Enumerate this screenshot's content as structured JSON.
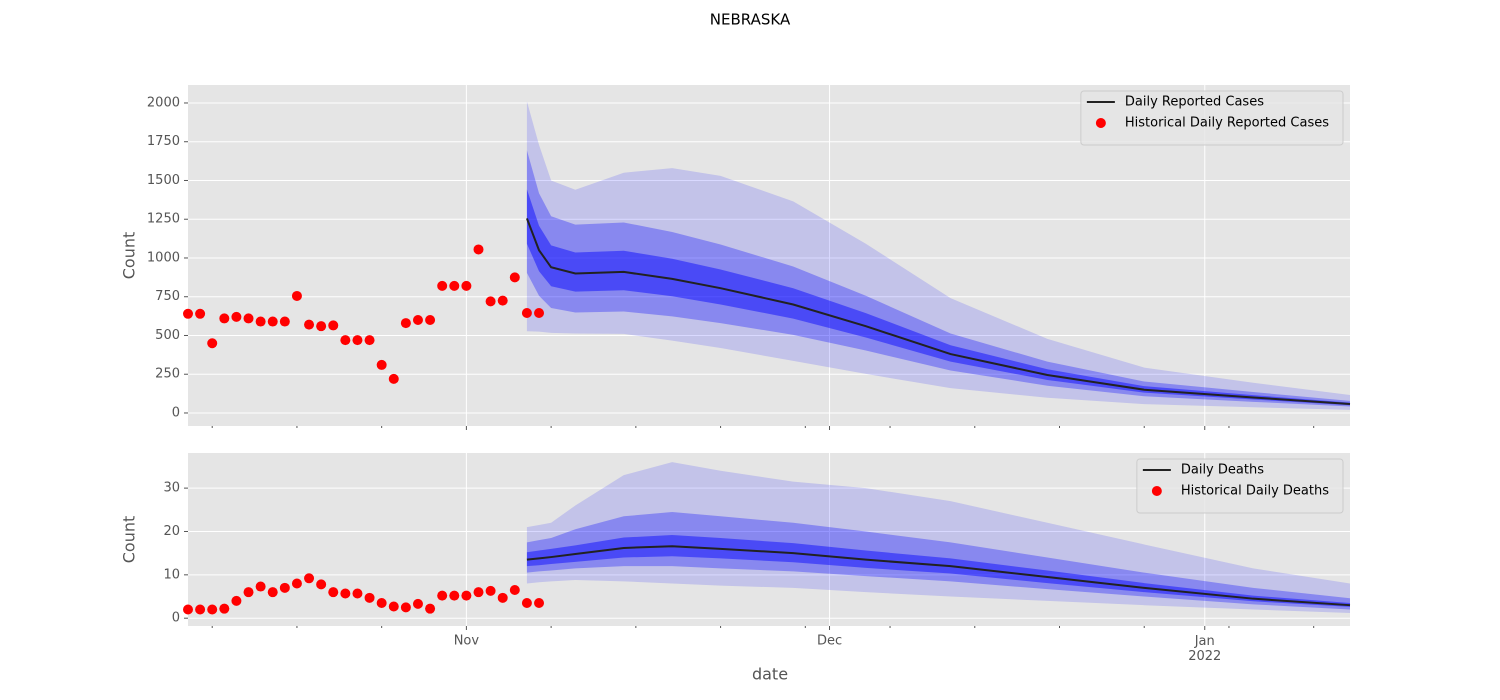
{
  "chart_data": [
    {
      "type": "line",
      "title": "NEBRASKA",
      "ylabel": "Count",
      "sharex": true,
      "grid": true,
      "legend": "upper right",
      "ylim": [
        -84,
        2116
      ],
      "yticks": [
        0,
        250,
        500,
        750,
        1000,
        1250,
        1500,
        1750,
        2000
      ],
      "x": [
        28,
        29,
        30,
        32,
        36,
        40,
        44,
        50,
        56,
        63,
        71,
        79,
        88,
        96
      ],
      "series": [
        {
          "name": "Daily Reported Cases",
          "type": "line",
          "color": "#222222",
          "values": [
            1255,
            1050,
            940,
            900,
            910,
            865,
            805,
            700,
            560,
            380,
            245,
            150,
            100,
            58
          ]
        },
        {
          "name": "Historical Daily Reported Cases",
          "type": "scatter",
          "color": "#ff0000",
          "x": [
            0,
            1,
            2,
            3,
            4,
            5,
            6,
            7,
            8,
            9,
            10,
            11,
            12,
            13,
            14,
            15,
            16,
            17,
            18,
            19,
            20,
            21,
            22,
            23,
            24,
            25,
            26,
            27,
            28,
            29
          ],
          "values": [
            640,
            640,
            450,
            610,
            620,
            610,
            590,
            590,
            590,
            755,
            570,
            560,
            565,
            470,
            470,
            470,
            310,
            220,
            580,
            600,
            600,
            820,
            820,
            820,
            1055,
            720,
            725,
            875,
            645,
            645
          ]
        }
      ],
      "bands": {
        "color": "#0000ff",
        "ranges": [
          {
            "opacity": 0.15,
            "upper": [
              2010,
              1730,
              1500,
              1440,
              1550,
              1580,
              1530,
              1365,
              1092,
              741,
              478,
              293,
              195,
              116
            ],
            "lower": [
              527,
              525,
              517,
              513,
              510,
              467,
              419,
              336,
              252,
              160,
              98,
              57,
              37,
              20
            ]
          },
          {
            "opacity": 0.3,
            "upper": [
              1694,
              1418,
              1269,
              1215,
              1229,
              1168,
              1087,
              945,
              756,
              513,
              331,
              203,
              135,
              78
            ],
            "lower": [
              904,
              756,
              677,
              648,
              655,
              623,
              580,
              504,
              403,
              274,
              176,
              108,
              72,
              42
            ]
          },
          {
            "opacity": 0.45,
            "upper": [
              1443,
              1208,
              1081,
              1035,
              1047,
              995,
              926,
              805,
              644,
              437,
              282,
              173,
              115,
              67
            ],
            "lower": [
              1092,
              914,
              818,
              783,
              792,
              753,
              700,
              609,
              487,
              331,
              213,
              131,
              87,
              50
            ]
          }
        ]
      }
    },
    {
      "type": "line",
      "ylabel": "Count",
      "xlabel": "date",
      "grid": true,
      "legend": "upper right",
      "xlim": [
        0,
        96
      ],
      "xticks": [
        {
          "value": 23,
          "label": "Nov"
        },
        {
          "value": 53,
          "label": "Dec"
        },
        {
          "value": 84,
          "label": "Jan\n2022"
        }
      ],
      "xminorticks": [
        2,
        9,
        16,
        30,
        37,
        44,
        51,
        58,
        65,
        72,
        79,
        86,
        93
      ],
      "ylim": [
        -1.8,
        38.1
      ],
      "yticks": [
        0,
        10,
        20,
        30
      ],
      "x": [
        28,
        29,
        30,
        32,
        36,
        40,
        44,
        50,
        56,
        63,
        71,
        79,
        88,
        96
      ],
      "series": [
        {
          "name": "Daily Deaths",
          "type": "line",
          "color": "#222222",
          "values": [
            13.5,
            13.8,
            14.1,
            14.8,
            16.2,
            16.6,
            16,
            15,
            13.5,
            12,
            9.5,
            7,
            4.5,
            3
          ]
        },
        {
          "name": "Historical Daily Deaths",
          "type": "scatter",
          "color": "#ff0000",
          "x": [
            0,
            1,
            2,
            3,
            4,
            5,
            6,
            7,
            8,
            9,
            10,
            11,
            12,
            13,
            14,
            15,
            16,
            17,
            18,
            19,
            20,
            21,
            22,
            23,
            24,
            25,
            26,
            27,
            28,
            29
          ],
          "values": [
            2,
            2,
            2,
            2.2,
            4,
            6,
            7.3,
            6,
            7,
            8,
            9.2,
            7.8,
            6,
            5.7,
            5.7,
            4.7,
            3.5,
            2.7,
            2.5,
            3.3,
            2.2,
            5.2,
            5.2,
            5.2,
            6,
            6.3,
            4.7,
            6.5,
            3.5,
            3.5
          ]
        }
      ],
      "bands": {
        "color": "#0000ff",
        "ranges": [
          {
            "opacity": 0.15,
            "upper": [
              21,
              21.5,
              22,
              26,
              33,
              36,
              34,
              31.5,
              30,
              27,
              22,
              17,
              11.5,
              8
            ],
            "lower": [
              8,
              8.3,
              8.5,
              8.8,
              8.5,
              8,
              7.5,
              7,
              6,
              5,
              4,
              3,
              2,
              1.2
            ]
          },
          {
            "opacity": 0.3,
            "upper": [
              17.5,
              18,
              18.5,
              20.5,
              23.5,
              24.5,
              23.5,
              22,
              20,
              17.5,
              14,
              10.5,
              7,
              4.6
            ],
            "lower": [
              10.5,
              10.8,
              11,
              11.5,
              12,
              12,
              11.5,
              10.8,
              9.7,
              8.5,
              6.7,
              5,
              3.2,
              2
            ]
          },
          {
            "opacity": 0.45,
            "upper": [
              15.2,
              15.6,
              16,
              16.8,
              18.6,
              19.2,
              18.5,
              17.3,
              15.6,
              13.8,
              11,
              8.1,
              5.2,
              3.5
            ],
            "lower": [
              12,
              12.2,
              12.5,
              13,
              14,
              14.3,
              13.8,
              12.9,
              11.6,
              10.3,
              8.1,
              6,
              3.9,
              2.6
            ]
          }
        ]
      }
    }
  ]
}
